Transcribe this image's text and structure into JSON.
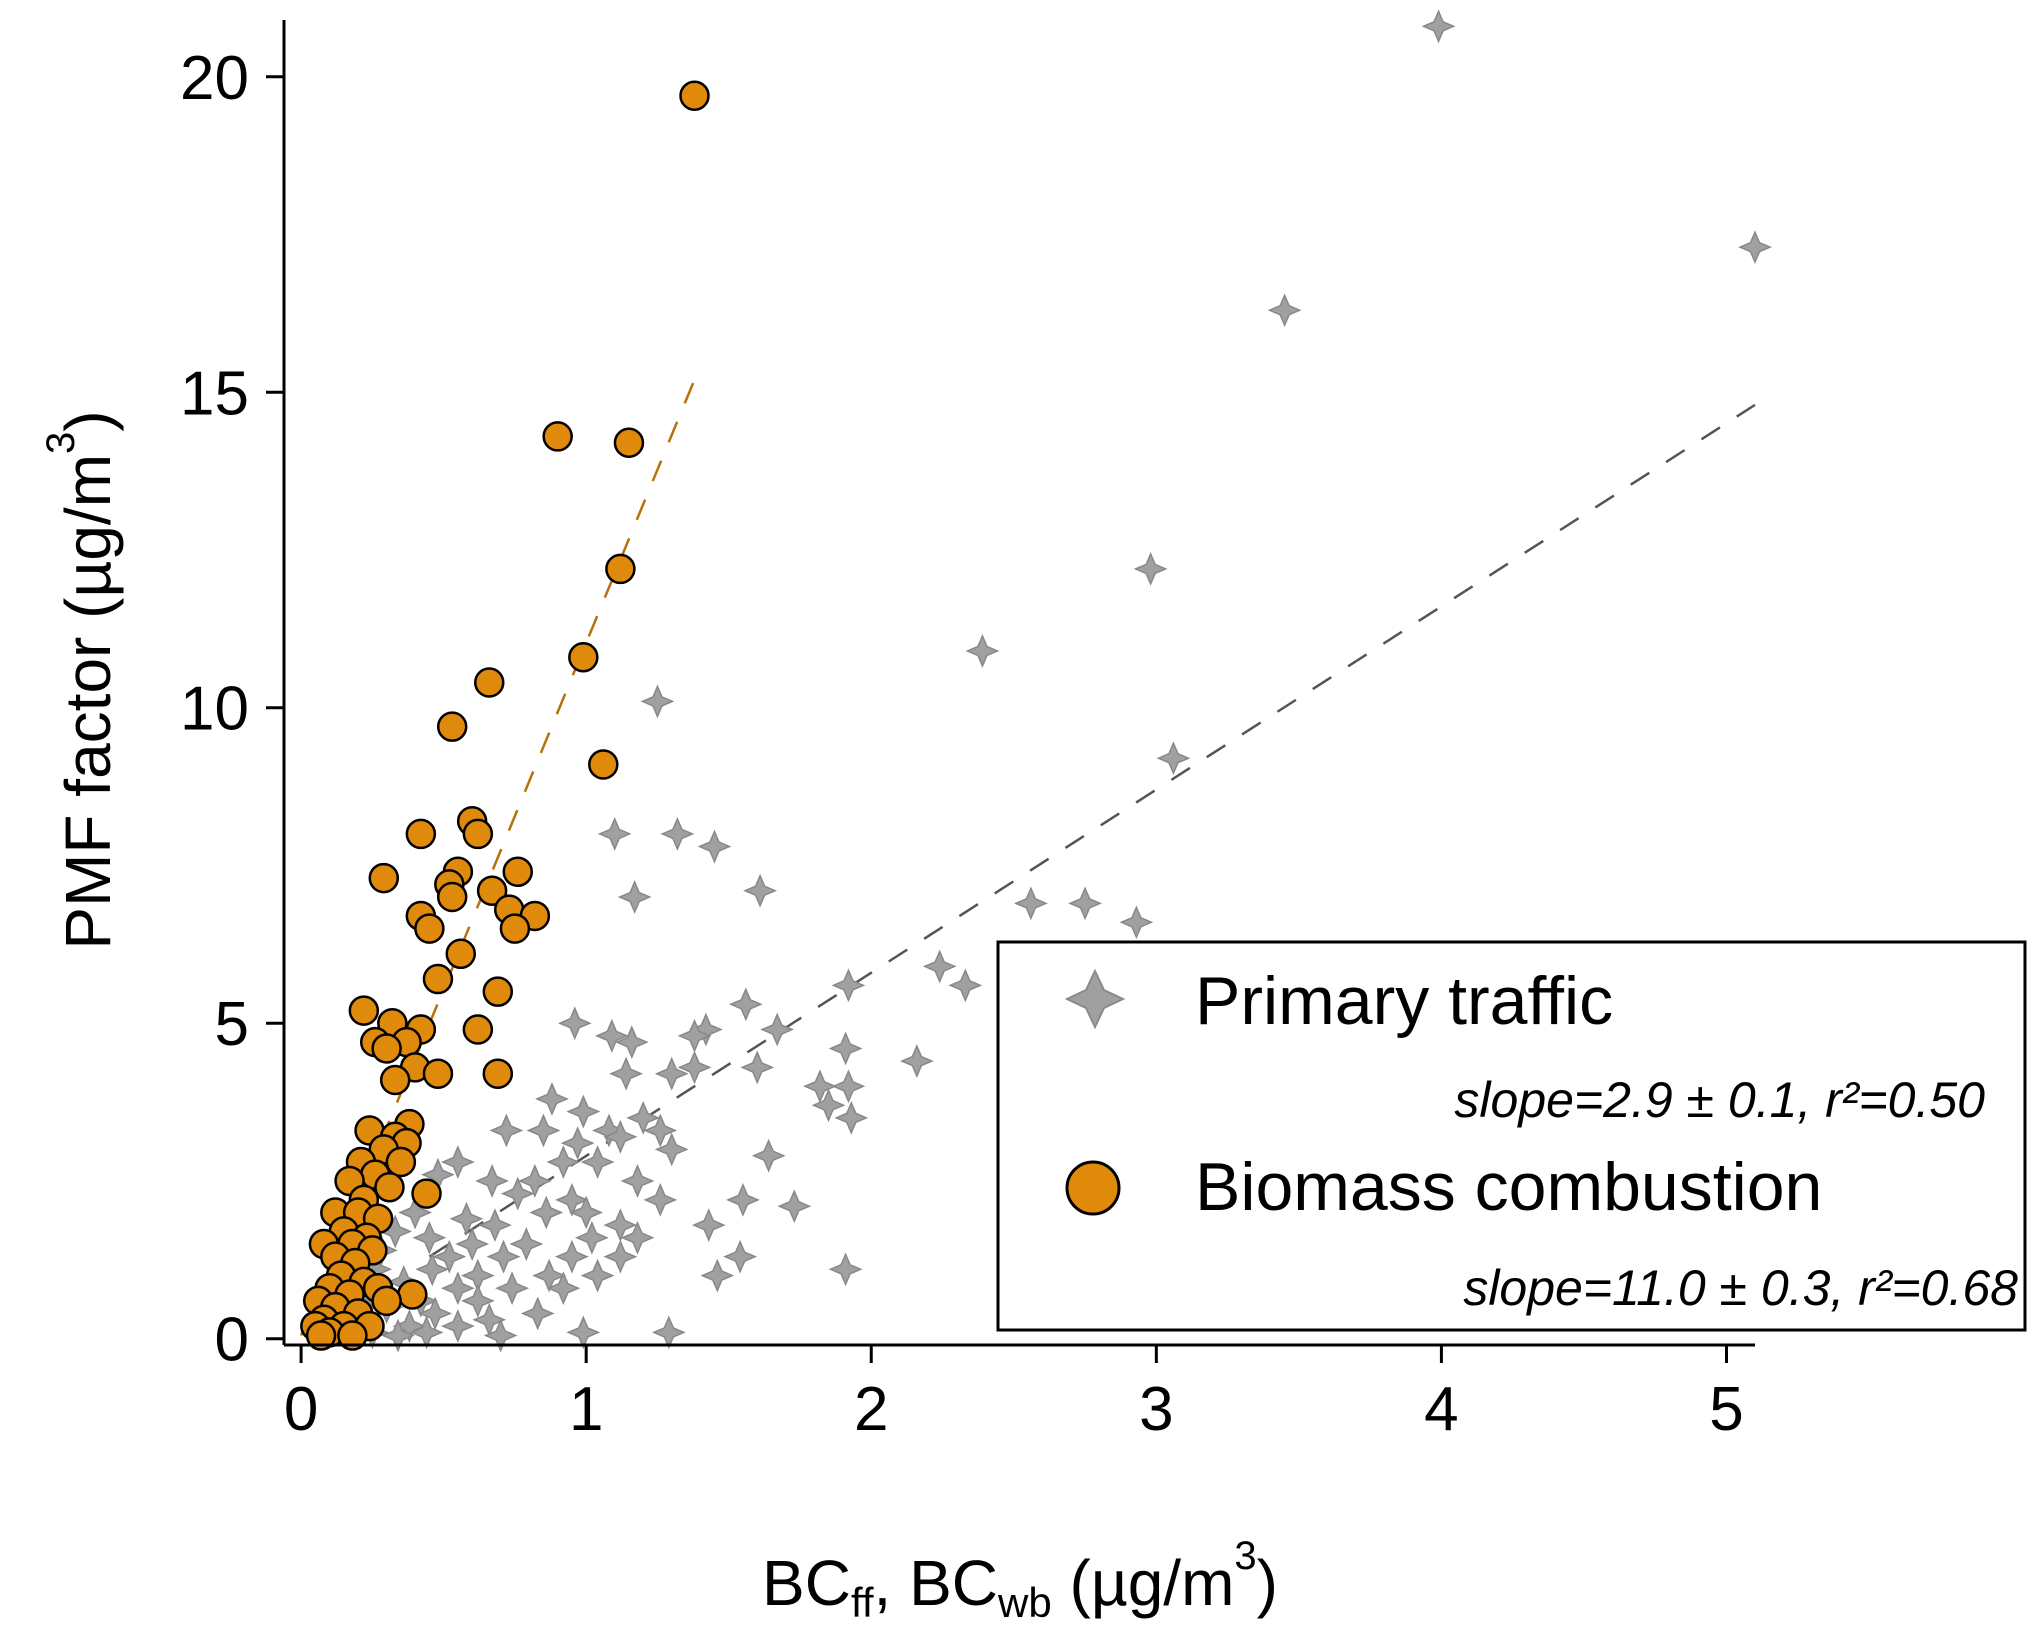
{
  "chart_data": {
    "type": "scatter",
    "title": "",
    "xlabel_parts": [
      "BC",
      "ff",
      ", BC",
      "wb",
      " (µg/m",
      "3",
      ")"
    ],
    "ylabel_parts": [
      "PMF factor (µg/m",
      "3",
      ")"
    ],
    "xlim": [
      -0.06,
      5.1
    ],
    "ylim": [
      -0.1,
      20.9
    ],
    "xticks": [
      0,
      1,
      2,
      3,
      4,
      5
    ],
    "yticks": [
      0,
      5,
      10,
      15,
      20
    ],
    "grid": false,
    "legend_position": "bottom-right",
    "series": [
      {
        "name": "Primary traffic",
        "stat": "slope=2.9 ± 0.1, r²=0.50",
        "marker": "star4",
        "color": "#a0a0a0",
        "fit": {
          "x": [
            0.45,
            5.1
          ],
          "y": [
            1.3,
            14.8
          ],
          "color": "#555555"
        },
        "points": [
          [
            3.99,
            20.8
          ],
          [
            5.1,
            17.3
          ],
          [
            3.45,
            16.3
          ],
          [
            2.98,
            12.2
          ],
          [
            2.39,
            10.9
          ],
          [
            1.25,
            10.1
          ],
          [
            3.06,
            9.2
          ],
          [
            1.1,
            8.0
          ],
          [
            1.32,
            8.0
          ],
          [
            1.45,
            7.8
          ],
          [
            1.61,
            7.1
          ],
          [
            1.17,
            7.0
          ],
          [
            2.56,
            6.9
          ],
          [
            2.75,
            6.9
          ],
          [
            2.93,
            6.6
          ],
          [
            2.24,
            5.9
          ],
          [
            2.33,
            5.6
          ],
          [
            1.92,
            5.6
          ],
          [
            1.56,
            5.3
          ],
          [
            0.96,
            5.0
          ],
          [
            1.42,
            4.9
          ],
          [
            1.67,
            4.9
          ],
          [
            1.38,
            4.8
          ],
          [
            1.09,
            4.8
          ],
          [
            1.16,
            4.7
          ],
          [
            1.91,
            4.6
          ],
          [
            2.16,
            4.4
          ],
          [
            1.6,
            4.3
          ],
          [
            1.14,
            4.2
          ],
          [
            1.38,
            4.3
          ],
          [
            1.3,
            4.2
          ],
          [
            1.82,
            4.0
          ],
          [
            1.92,
            4.0
          ],
          [
            0.88,
            3.8
          ],
          [
            0.99,
            3.6
          ],
          [
            1.85,
            3.7
          ],
          [
            1.93,
            3.5
          ],
          [
            1.2,
            3.5
          ],
          [
            1.26,
            3.3
          ],
          [
            0.85,
            3.3
          ],
          [
            1.08,
            3.3
          ],
          [
            0.72,
            3.3
          ],
          [
            0.97,
            3.1
          ],
          [
            1.12,
            3.2
          ],
          [
            1.3,
            3.0
          ],
          [
            1.64,
            2.9
          ],
          [
            0.92,
            2.8
          ],
          [
            1.04,
            2.8
          ],
          [
            0.82,
            2.5
          ],
          [
            1.18,
            2.5
          ],
          [
            0.55,
            2.8
          ],
          [
            0.67,
            2.5
          ],
          [
            0.48,
            2.6
          ],
          [
            0.76,
            2.3
          ],
          [
            0.95,
            2.2
          ],
          [
            1.26,
            2.2
          ],
          [
            1.55,
            2.2
          ],
          [
            1.73,
            2.1
          ],
          [
            0.86,
            2.0
          ],
          [
            1.0,
            2.0
          ],
          [
            0.4,
            2.0
          ],
          [
            0.58,
            1.9
          ],
          [
            1.12,
            1.8
          ],
          [
            1.43,
            1.8
          ],
          [
            0.68,
            1.8
          ],
          [
            0.33,
            1.7
          ],
          [
            0.45,
            1.6
          ],
          [
            0.6,
            1.5
          ],
          [
            0.79,
            1.5
          ],
          [
            1.02,
            1.6
          ],
          [
            1.18,
            1.6
          ],
          [
            0.28,
            1.4
          ],
          [
            0.52,
            1.3
          ],
          [
            0.71,
            1.3
          ],
          [
            0.95,
            1.3
          ],
          [
            1.12,
            1.3
          ],
          [
            1.54,
            1.3
          ],
          [
            1.91,
            1.1
          ],
          [
            0.26,
            1.1
          ],
          [
            0.46,
            1.1
          ],
          [
            0.62,
            1.0
          ],
          [
            0.87,
            1.0
          ],
          [
            1.04,
            1.0
          ],
          [
            1.46,
            1.0
          ],
          [
            0.36,
            0.9
          ],
          [
            0.55,
            0.8
          ],
          [
            0.74,
            0.8
          ],
          [
            0.92,
            0.8
          ],
          [
            0.24,
            0.7
          ],
          [
            0.42,
            0.6
          ],
          [
            0.62,
            0.6
          ],
          [
            0.3,
            0.5
          ],
          [
            0.47,
            0.4
          ],
          [
            0.83,
            0.4
          ],
          [
            0.2,
            0.3
          ],
          [
            0.66,
            0.3
          ],
          [
            0.38,
            0.2
          ],
          [
            0.55,
            0.2
          ],
          [
            0.16,
            0.1
          ],
          [
            0.25,
            0.1
          ],
          [
            0.44,
            0.1
          ],
          [
            0.99,
            0.1
          ],
          [
            1.29,
            0.1
          ],
          [
            0.7,
            0.05
          ],
          [
            0.34,
            0.05
          ]
        ]
      },
      {
        "name": "Biomass combustion",
        "stat": "slope=11.0 ± 0.3, r²=0.68",
        "marker": "circle",
        "color": "#e08a0b",
        "fit": {
          "x": [
            0.0,
            1.38
          ],
          "y": [
            0.05,
            15.2
          ],
          "color": "#b8700d"
        },
        "points": [
          [
            1.38,
            19.7
          ],
          [
            0.9,
            14.3
          ],
          [
            1.15,
            14.2
          ],
          [
            1.12,
            12.2
          ],
          [
            0.99,
            10.8
          ],
          [
            0.66,
            10.4
          ],
          [
            0.53,
            9.7
          ],
          [
            1.06,
            9.1
          ],
          [
            0.6,
            8.2
          ],
          [
            0.42,
            8.0
          ],
          [
            0.62,
            8.0
          ],
          [
            0.55,
            7.4
          ],
          [
            0.29,
            7.3
          ],
          [
            0.52,
            7.2
          ],
          [
            0.76,
            7.4
          ],
          [
            0.67,
            7.1
          ],
          [
            0.53,
            7.0
          ],
          [
            0.73,
            6.8
          ],
          [
            0.42,
            6.7
          ],
          [
            0.82,
            6.7
          ],
          [
            0.45,
            6.5
          ],
          [
            0.75,
            6.5
          ],
          [
            0.56,
            6.1
          ],
          [
            0.48,
            5.7
          ],
          [
            0.69,
            5.5
          ],
          [
            0.22,
            5.2
          ],
          [
            0.32,
            5.0
          ],
          [
            0.42,
            4.9
          ],
          [
            0.62,
            4.9
          ],
          [
            0.26,
            4.7
          ],
          [
            0.37,
            4.7
          ],
          [
            0.3,
            4.6
          ],
          [
            0.4,
            4.3
          ],
          [
            0.33,
            4.1
          ],
          [
            0.48,
            4.2
          ],
          [
            0.69,
            4.2
          ],
          [
            0.38,
            3.4
          ],
          [
            0.24,
            3.3
          ],
          [
            0.33,
            3.2
          ],
          [
            0.37,
            3.1
          ],
          [
            0.29,
            3.0
          ],
          [
            0.21,
            2.8
          ],
          [
            0.35,
            2.8
          ],
          [
            0.26,
            2.6
          ],
          [
            0.17,
            2.5
          ],
          [
            0.31,
            2.4
          ],
          [
            0.44,
            2.3
          ],
          [
            0.22,
            2.2
          ],
          [
            0.12,
            2.0
          ],
          [
            0.2,
            2.0
          ],
          [
            0.27,
            1.9
          ],
          [
            0.15,
            1.7
          ],
          [
            0.23,
            1.6
          ],
          [
            0.08,
            1.5
          ],
          [
            0.18,
            1.5
          ],
          [
            0.25,
            1.4
          ],
          [
            0.12,
            1.3
          ],
          [
            0.19,
            1.2
          ],
          [
            0.14,
            1.0
          ],
          [
            0.22,
            0.9
          ],
          [
            0.27,
            0.8
          ],
          [
            0.1,
            0.8
          ],
          [
            0.39,
            0.7
          ],
          [
            0.17,
            0.7
          ],
          [
            0.06,
            0.6
          ],
          [
            0.3,
            0.6
          ],
          [
            0.12,
            0.5
          ],
          [
            0.2,
            0.4
          ],
          [
            0.08,
            0.3
          ],
          [
            0.15,
            0.2
          ],
          [
            0.05,
            0.2
          ],
          [
            0.24,
            0.2
          ],
          [
            0.1,
            0.1
          ],
          [
            0.18,
            0.05
          ],
          [
            0.07,
            0.05
          ]
        ]
      }
    ]
  }
}
